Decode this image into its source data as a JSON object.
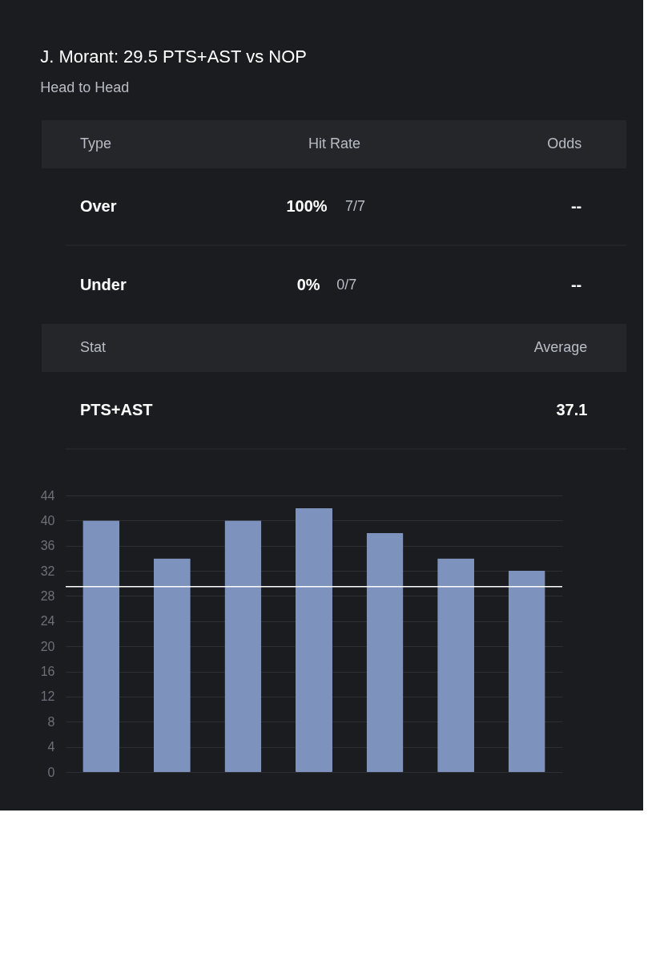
{
  "chart_data": {
    "type": "bar",
    "title": "J. Morant:  29.5 PTS+AST vs NOP",
    "subtitle": "Head to Head",
    "annotations": [
      "Type",
      "Hit Rate",
      "Odds",
      "Over",
      "100%",
      "7/7",
      "--",
      "Under",
      "0%",
      "0/7",
      "--",
      "Stat",
      "Average",
      "PTS+AST",
      "37.1"
    ],
    "categories": [
      null,
      null,
      null,
      null,
      null,
      null,
      null
    ],
    "values": [
      40,
      34,
      40,
      42,
      38,
      34,
      32
    ],
    "color": "#7d93bd",
    "ylim": [
      0,
      44
    ],
    "yticks": [
      0,
      4,
      8,
      12,
      16,
      20,
      24,
      28,
      32,
      36,
      40,
      44
    ],
    "ref_lines": [
      {
        "axis": "y",
        "value": 29.5,
        "label": null,
        "color": "#ffffff"
      }
    ],
    "grid": "y",
    "tick_labels": "y"
  }
}
